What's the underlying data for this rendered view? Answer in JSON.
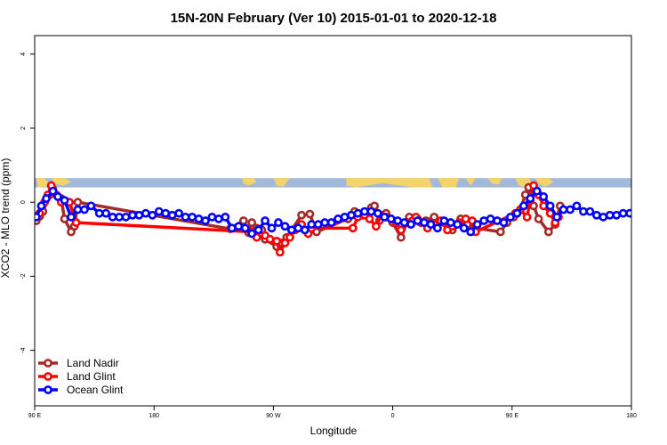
{
  "chart_data": {
    "type": "line",
    "title": "15N-20N February (Ver 10)   2015-01-01 to 2020-12-18",
    "xlabel": "Longitude",
    "ylabel": "XCO2 - MLO trend (ppm)",
    "xlim": [
      90,
      450
    ],
    "ylim": [
      -5.5,
      4.5
    ],
    "x_ticks": [
      {
        "value": 90,
        "label": "90 E"
      },
      {
        "value": 162,
        "label": "180"
      },
      {
        "value": 234,
        "label": "90 W"
      },
      {
        "value": 306,
        "label": "0"
      },
      {
        "value": 378,
        "label": "90 E"
      },
      {
        "value": 450,
        "label": "180"
      }
    ],
    "y_ticks": [
      {
        "value": 4,
        "label": "4"
      },
      {
        "value": 2,
        "label": "2"
      },
      {
        "value": 0,
        "label": "0"
      },
      {
        "value": -2,
        "label": "-2"
      },
      {
        "value": -4,
        "label": "-4"
      }
    ],
    "map_strip": {
      "ymin": 0.4,
      "ymax": 0.65,
      "ocean_color": "#a3b9d9",
      "land_color": "#f4d36b"
    },
    "legend_position": "bottom-left",
    "series": [
      {
        "name": "Land Nadir",
        "color": "#a52a2a",
        "x": [
          91,
          93,
          95,
          99,
          101,
          106,
          108,
          112,
          114,
          116,
          208,
          216,
          219,
          221,
          224,
          227,
          229,
          236,
          239,
          242,
          245,
          251,
          256,
          260,
          279,
          283,
          288,
          293,
          295,
          298,
          301,
          302,
          306,
          311,
          316,
          321,
          326,
          331,
          337,
          342,
          347,
          351,
          356,
          371,
          375,
          379,
          381,
          383,
          386,
          388,
          391,
          394,
          400,
          404,
          407
        ],
        "y": [
          -0.5,
          -0.38,
          -0.25,
          0.2,
          0.35,
          0.1,
          -0.45,
          -0.8,
          -0.65,
          0.0,
          -0.72,
          -0.5,
          -0.82,
          -0.55,
          -0.7,
          -0.75,
          -1.0,
          -1.2,
          -1.1,
          -0.95,
          -0.75,
          -0.35,
          -0.32,
          -0.8,
          -0.45,
          -0.25,
          -0.35,
          -0.15,
          -0.1,
          -0.5,
          -0.35,
          -0.3,
          -0.55,
          -0.95,
          -0.4,
          -0.45,
          -0.5,
          -0.4,
          -0.55,
          -0.75,
          -0.45,
          -0.6,
          -0.7,
          -0.8,
          -0.55,
          -0.4,
          -0.3,
          -0.2,
          0.2,
          0.4,
          -0.1,
          -0.45,
          -0.8,
          -0.6,
          -0.1
        ]
      },
      {
        "name": "Land Glint",
        "color": "#ff0000",
        "x": [
          93,
          96,
          98,
          100,
          103,
          106,
          111,
          115,
          221,
          224,
          229,
          232,
          236,
          238,
          241,
          244,
          247,
          251,
          255,
          257,
          282,
          285,
          289,
          292,
          296,
          299,
          302,
          305,
          308,
          311,
          315,
          318,
          320,
          323,
          327,
          331,
          335,
          339,
          342,
          346,
          350,
          354,
          356,
          380,
          383,
          387,
          389,
          391,
          394,
          397,
          401,
          404,
          406
        ],
        "y": [
          -0.3,
          0.0,
          0.2,
          0.45,
          0.2,
          0.0,
          0.0,
          -0.55,
          -0.8,
          -0.95,
          -0.9,
          -1.0,
          -1.05,
          -1.35,
          -1.1,
          -0.95,
          -0.75,
          -0.6,
          -0.85,
          -0.7,
          -0.7,
          -0.4,
          -0.35,
          -0.45,
          -0.65,
          -0.35,
          -0.4,
          -0.45,
          -0.55,
          -0.75,
          -0.55,
          -0.5,
          -0.4,
          -0.55,
          -0.7,
          -0.6,
          -0.5,
          -0.75,
          -0.65,
          -0.55,
          -0.45,
          -0.5,
          -0.8,
          -0.3,
          -0.2,
          -0.4,
          0.05,
          0.45,
          0.2,
          -0.1,
          -0.3,
          -0.55,
          -0.4
        ]
      },
      {
        "name": "Ocean Glint",
        "color": "#0000ff",
        "x": [
          91,
          94,
          97,
          101,
          104,
          108,
          112,
          116,
          120,
          124,
          129,
          133,
          137,
          141,
          145,
          149,
          153,
          157,
          161,
          165,
          169,
          173,
          177,
          181,
          185,
          189,
          193,
          197,
          201,
          205,
          209,
          213,
          217,
          221,
          225,
          229,
          233,
          237,
          241,
          245,
          249,
          253,
          257,
          261,
          265,
          269,
          273,
          277,
          281,
          285,
          289,
          293,
          297,
          301,
          305,
          309,
          313,
          317,
          321,
          325,
          329,
          333,
          337,
          341,
          345,
          349,
          353,
          357,
          361,
          365,
          369,
          373,
          377,
          381,
          385,
          389,
          393,
          397,
          401,
          405,
          409,
          413,
          417,
          421,
          425,
          429,
          433,
          437,
          441,
          445,
          449
        ],
        "y": [
          -0.4,
          -0.1,
          0.1,
          0.3,
          0.15,
          0.05,
          -0.4,
          -0.2,
          -0.2,
          -0.1,
          -0.3,
          -0.3,
          -0.4,
          -0.4,
          -0.4,
          -0.35,
          -0.35,
          -0.3,
          -0.35,
          -0.25,
          -0.3,
          -0.35,
          -0.3,
          -0.4,
          -0.4,
          -0.45,
          -0.5,
          -0.4,
          -0.45,
          -0.4,
          -0.7,
          -0.65,
          -0.7,
          -0.85,
          -0.75,
          -0.5,
          -0.7,
          -0.55,
          -0.65,
          -0.75,
          -0.7,
          -0.75,
          -0.6,
          -0.6,
          -0.55,
          -0.55,
          -0.45,
          -0.4,
          -0.35,
          -0.3,
          -0.25,
          -0.25,
          -0.3,
          -0.4,
          -0.45,
          -0.5,
          -0.55,
          -0.6,
          -0.5,
          -0.55,
          -0.6,
          -0.7,
          -0.5,
          -0.55,
          -0.6,
          -0.7,
          -0.8,
          -0.6,
          -0.5,
          -0.45,
          -0.5,
          -0.55,
          -0.4,
          -0.3,
          -0.1,
          0.1,
          0.3,
          0.15,
          -0.1,
          -0.4,
          -0.2,
          -0.2,
          -0.1,
          -0.25,
          -0.25,
          -0.35,
          -0.4,
          -0.35,
          -0.35,
          -0.3,
          -0.3
        ]
      }
    ]
  }
}
